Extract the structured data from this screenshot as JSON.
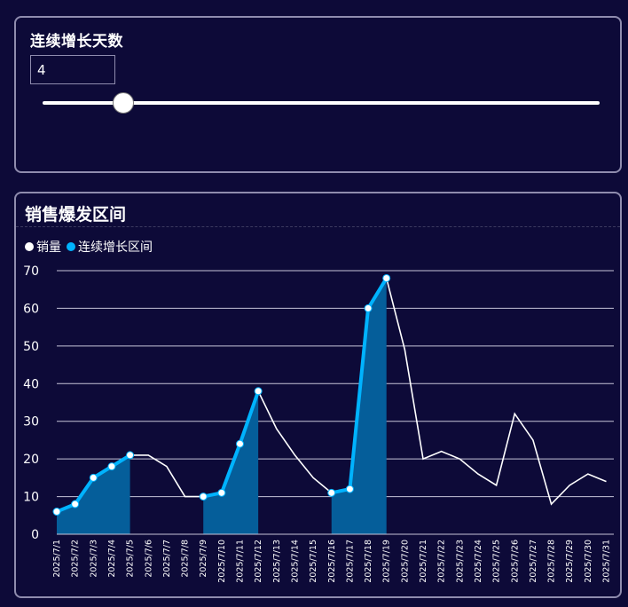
{
  "control": {
    "title": "连续增长天数",
    "input_value": "4",
    "slider": {
      "value": 4,
      "min": 1,
      "max": 30
    }
  },
  "chart": {
    "title": "销售爆发区间",
    "legend": [
      {
        "label": "销量",
        "color": "#ffffff"
      },
      {
        "label": "连续增长区间",
        "color": "#00b3ff"
      }
    ]
  },
  "colors": {
    "background": "#0d0a38",
    "line": "#ffffff",
    "highlight_line": "#00b3ff",
    "highlight_area": "#055e9a",
    "grid": "#c6c4d8"
  },
  "chart_data": {
    "type": "line",
    "title": "销售爆发区间",
    "xlabel": "",
    "ylabel": "",
    "ylim": [
      0,
      70
    ],
    "y_ticks": [
      0,
      10,
      20,
      30,
      40,
      50,
      60,
      70
    ],
    "grid": true,
    "legend_position": "top-left",
    "categories": [
      "2025/7/1",
      "2025/7/2",
      "2025/7/3",
      "2025/7/4",
      "2025/7/5",
      "2025/7/6",
      "2025/7/7",
      "2025/7/8",
      "2025/7/9",
      "2025/7/10",
      "2025/7/11",
      "2025/7/12",
      "2025/7/13",
      "2025/7/14",
      "2025/7/15",
      "2025/7/16",
      "2025/7/17",
      "2025/7/18",
      "2025/7/19",
      "2025/7/20",
      "2025/7/21",
      "2025/7/22",
      "2025/7/23",
      "2025/7/24",
      "2025/7/25",
      "2025/7/26",
      "2025/7/27",
      "2025/7/28",
      "2025/7/29",
      "2025/7/30",
      "2025/7/31"
    ],
    "series": [
      {
        "name": "销量",
        "values": [
          6,
          8,
          15,
          18,
          21,
          21,
          18,
          10,
          10,
          11,
          24,
          38,
          28,
          21,
          15,
          11,
          12,
          60,
          68,
          49,
          20,
          22,
          20,
          16,
          13,
          32,
          25,
          8,
          13,
          16,
          14
        ]
      },
      {
        "name": "连续增长区间",
        "ranges": [
          [
            "2025/7/1",
            "2025/7/5"
          ],
          [
            "2025/7/9",
            "2025/7/12"
          ],
          [
            "2025/7/16",
            "2025/7/19"
          ]
        ]
      }
    ]
  }
}
